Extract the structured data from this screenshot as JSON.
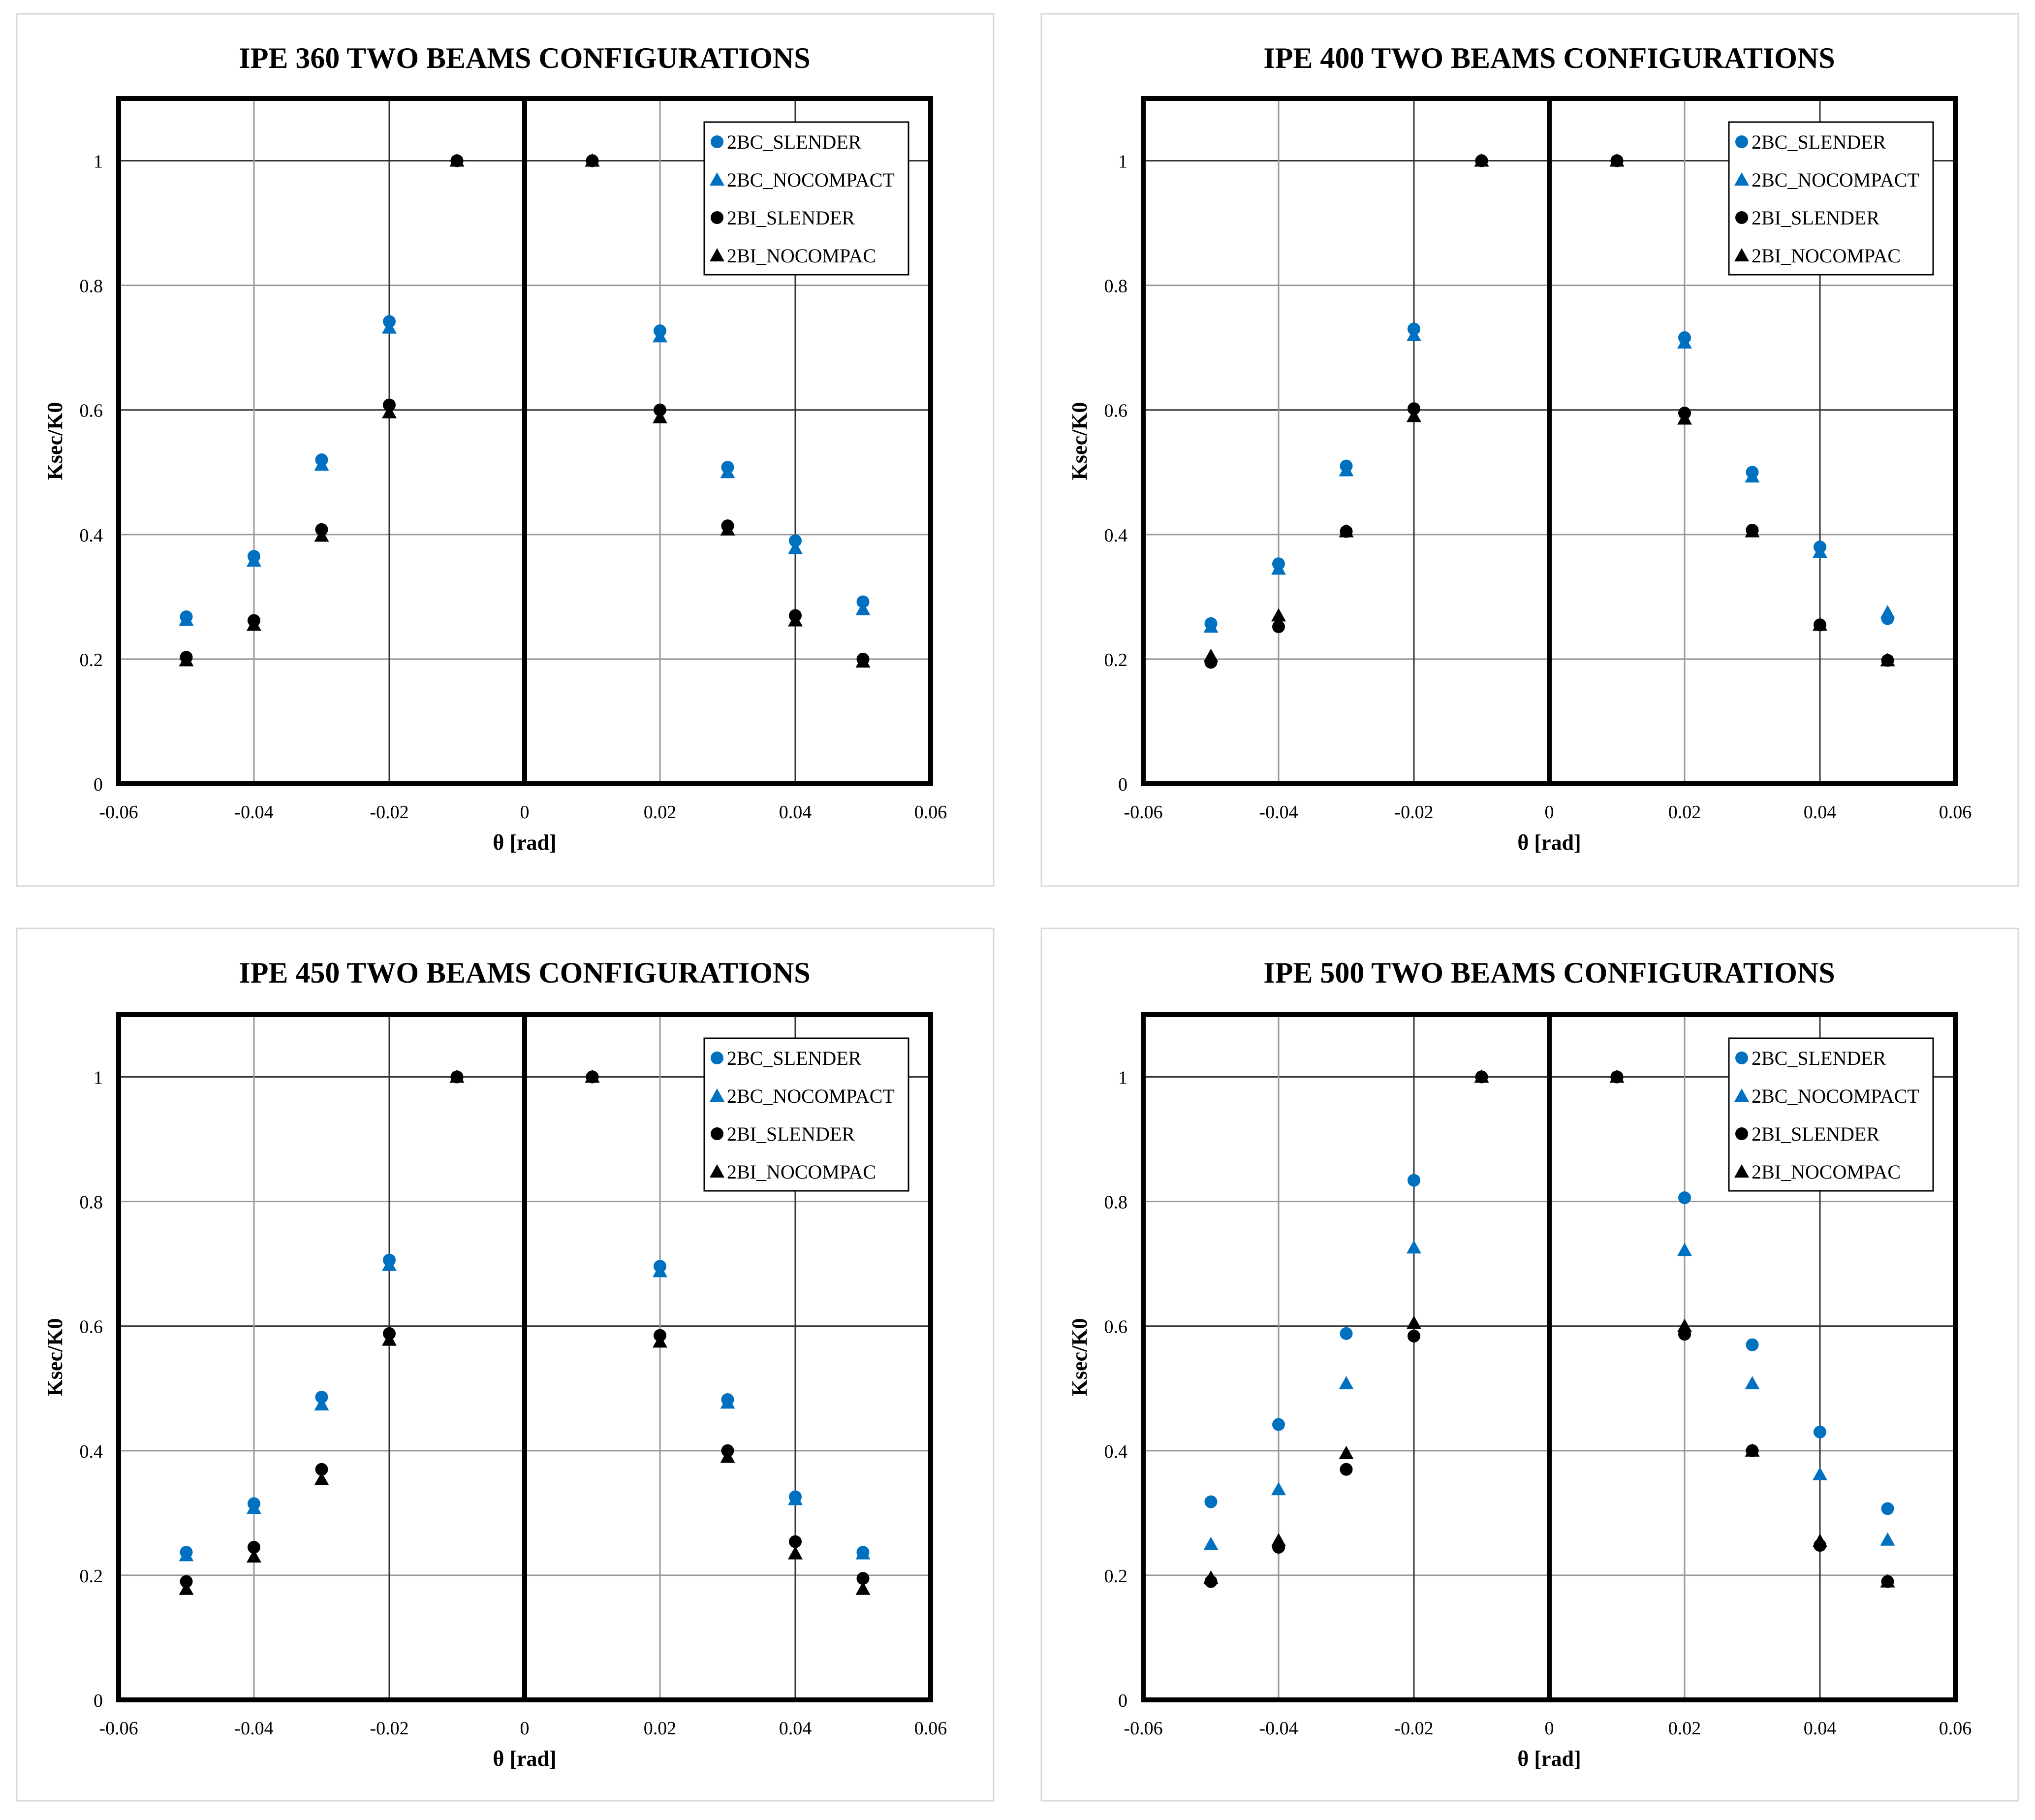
{
  "colors": {
    "blue": "#0070C0",
    "black": "#000000",
    "grid": "#999999",
    "frame": "#000000"
  },
  "chart_data": [
    {
      "type": "scatter",
      "title": "IPE 360 TWO BEAMS CONFIGURATIONS",
      "xlabel": "θ [rad]",
      "ylabel": "Ksec/K0",
      "xlim": [
        -0.06,
        0.06
      ],
      "ylim": [
        0,
        1.1
      ],
      "x_ticks": [
        -0.06,
        -0.04,
        -0.02,
        0,
        0.02,
        0.04,
        0.06
      ],
      "x_tick_labels": [
        "-0.06",
        "-0.04",
        "-0.02",
        "0",
        "0.02",
        "0.04",
        "0.06"
      ],
      "y_ticks": [
        0,
        0.2,
        0.4,
        0.6,
        0.8,
        1
      ],
      "y_tick_labels": [
        "0",
        "0.2",
        "0.4",
        "0.6",
        "0.8",
        "1"
      ],
      "legend_position": "top-right",
      "series": [
        {
          "name": "2BC_SLENDER",
          "marker": "circle",
          "color": "#0070C0",
          "x": [
            -0.05,
            -0.04,
            -0.03,
            -0.02,
            -0.01,
            0.01,
            0.02,
            0.03,
            0.04,
            0.05
          ],
          "y": [
            0.268,
            0.365,
            0.52,
            0.742,
            1.0,
            1.0,
            0.727,
            0.508,
            0.39,
            0.292
          ]
        },
        {
          "name": "2BC_NOCOMPACT",
          "marker": "triangle",
          "color": "#0070C0",
          "x": [
            -0.05,
            -0.04,
            -0.03,
            -0.02,
            -0.01,
            0.01,
            0.02,
            0.03,
            0.04,
            0.05
          ],
          "y": [
            0.263,
            0.358,
            0.512,
            0.732,
            1.0,
            1.0,
            0.718,
            0.5,
            0.378,
            0.28
          ]
        },
        {
          "name": "2BI_SLENDER",
          "marker": "circle",
          "color": "#000000",
          "x": [
            -0.05,
            -0.04,
            -0.03,
            -0.02,
            -0.01,
            0.01,
            0.02,
            0.03,
            0.04,
            0.05
          ],
          "y": [
            0.203,
            0.262,
            0.408,
            0.608,
            1.0,
            1.0,
            0.6,
            0.414,
            0.27,
            0.2
          ]
        },
        {
          "name": "2BI_NOCOMPAC",
          "marker": "triangle",
          "color": "#000000",
          "x": [
            -0.05,
            -0.04,
            -0.03,
            -0.02,
            -0.01,
            0.01,
            0.02,
            0.03,
            0.04,
            0.05
          ],
          "y": [
            0.198,
            0.255,
            0.398,
            0.596,
            1.0,
            1.0,
            0.588,
            0.408,
            0.262,
            0.196
          ]
        }
      ]
    },
    {
      "type": "scatter",
      "title": "IPE 400 TWO BEAMS CONFIGURATIONS",
      "xlabel": "θ [rad]",
      "ylabel": "Ksec/K0",
      "xlim": [
        -0.06,
        0.06
      ],
      "ylim": [
        0,
        1.1
      ],
      "x_ticks": [
        -0.06,
        -0.04,
        -0.02,
        0,
        0.02,
        0.04,
        0.06
      ],
      "x_tick_labels": [
        "-0.06",
        "-0.04",
        "-0.02",
        "0",
        "0.02",
        "0.04",
        "0.06"
      ],
      "y_ticks": [
        0,
        0.2,
        0.4,
        0.6,
        0.8,
        1
      ],
      "y_tick_labels": [
        "0",
        "0.2",
        "0.4",
        "0.6",
        "0.8",
        "1"
      ],
      "legend_position": "top-right",
      "series": [
        {
          "name": "2BC_SLENDER",
          "marker": "circle",
          "color": "#0070C0",
          "x": [
            -0.05,
            -0.04,
            -0.03,
            -0.02,
            -0.01,
            0.01,
            0.02,
            0.03,
            0.04,
            0.05
          ],
          "y": [
            0.257,
            0.353,
            0.51,
            0.73,
            1.0,
            1.0,
            0.716,
            0.5,
            0.38,
            0.265
          ]
        },
        {
          "name": "2BC_NOCOMPACT",
          "marker": "triangle",
          "color": "#0070C0",
          "x": [
            -0.05,
            -0.04,
            -0.03,
            -0.02,
            -0.01,
            0.01,
            0.02,
            0.03,
            0.04,
            0.05
          ],
          "y": [
            0.252,
            0.345,
            0.503,
            0.72,
            1.0,
            1.0,
            0.708,
            0.493,
            0.372,
            0.275
          ]
        },
        {
          "name": "2BI_SLENDER",
          "marker": "circle",
          "color": "#000000",
          "x": [
            -0.05,
            -0.04,
            -0.03,
            -0.02,
            -0.01,
            0.01,
            0.02,
            0.03,
            0.04,
            0.05
          ],
          "y": [
            0.195,
            0.252,
            0.405,
            0.602,
            1.0,
            1.0,
            0.595,
            0.407,
            0.255,
            0.198
          ]
        },
        {
          "name": "2BI_NOCOMPAC",
          "marker": "triangle",
          "color": "#000000",
          "x": [
            -0.05,
            -0.04,
            -0.03,
            -0.02,
            -0.01,
            0.01,
            0.02,
            0.03,
            0.04,
            0.05
          ],
          "y": [
            0.205,
            0.27,
            0.405,
            0.59,
            1.0,
            1.0,
            0.586,
            0.405,
            0.255,
            0.198
          ]
        }
      ]
    },
    {
      "type": "scatter",
      "title": "IPE 450 TWO BEAMS CONFIGURATIONS",
      "xlabel": "θ [rad]",
      "ylabel": "Ksec/K0",
      "xlim": [
        -0.06,
        0.06
      ],
      "ylim": [
        0,
        1.1
      ],
      "x_ticks": [
        -0.06,
        -0.04,
        -0.02,
        0,
        0.02,
        0.04,
        0.06
      ],
      "x_tick_labels": [
        "-0.06",
        "-0.04",
        "-0.02",
        "0",
        "0.02",
        "0.04",
        "0.06"
      ],
      "y_ticks": [
        0,
        0.2,
        0.4,
        0.6,
        0.8,
        1
      ],
      "y_tick_labels": [
        "0",
        "0.2",
        "0.4",
        "0.6",
        "0.8",
        "1"
      ],
      "legend_position": "top-right",
      "series": [
        {
          "name": "2BC_SLENDER",
          "marker": "circle",
          "color": "#0070C0",
          "x": [
            -0.05,
            -0.04,
            -0.03,
            -0.02,
            -0.01,
            0.01,
            0.02,
            0.03,
            0.04,
            0.05
          ],
          "y": [
            0.237,
            0.315,
            0.486,
            0.706,
            1.0,
            1.0,
            0.696,
            0.482,
            0.326,
            0.237
          ]
        },
        {
          "name": "2BC_NOCOMPACT",
          "marker": "triangle",
          "color": "#0070C0",
          "x": [
            -0.05,
            -0.04,
            -0.03,
            -0.02,
            -0.01,
            0.01,
            0.02,
            0.03,
            0.04,
            0.05
          ],
          "y": [
            0.232,
            0.308,
            0.474,
            0.698,
            1.0,
            1.0,
            0.688,
            0.477,
            0.322,
            0.235
          ]
        },
        {
          "name": "2BI_SLENDER",
          "marker": "circle",
          "color": "#000000",
          "x": [
            -0.05,
            -0.04,
            -0.03,
            -0.02,
            -0.01,
            0.01,
            0.02,
            0.03,
            0.04,
            0.05
          ],
          "y": [
            0.19,
            0.245,
            0.37,
            0.588,
            1.0,
            1.0,
            0.585,
            0.4,
            0.254,
            0.195
          ]
        },
        {
          "name": "2BI_NOCOMPAC",
          "marker": "triangle",
          "color": "#000000",
          "x": [
            -0.05,
            -0.04,
            -0.03,
            -0.02,
            -0.01,
            0.01,
            0.02,
            0.03,
            0.04,
            0.05
          ],
          "y": [
            0.178,
            0.23,
            0.354,
            0.578,
            1.0,
            1.0,
            0.575,
            0.39,
            0.235,
            0.178
          ]
        }
      ]
    },
    {
      "type": "scatter",
      "title": "IPE 500 TWO BEAMS CONFIGURATIONS",
      "xlabel": "θ [rad]",
      "ylabel": "Ksec/K0",
      "xlim": [
        -0.06,
        0.06
      ],
      "ylim": [
        0,
        1.1
      ],
      "x_ticks": [
        -0.06,
        -0.04,
        -0.02,
        0,
        0.02,
        0.04,
        0.06
      ],
      "x_tick_labels": [
        "-0.06",
        "-0.04",
        "-0.02",
        "0",
        "0.02",
        "0.04",
        "0.06"
      ],
      "y_ticks": [
        0,
        0.2,
        0.4,
        0.6,
        0.8,
        1
      ],
      "y_tick_labels": [
        "0",
        "0.2",
        "0.4",
        "0.6",
        "0.8",
        "1"
      ],
      "legend_position": "top-right",
      "series": [
        {
          "name": "2BC_SLENDER",
          "marker": "circle",
          "color": "#0070C0",
          "x": [
            -0.05,
            -0.04,
            -0.03,
            -0.02,
            -0.01,
            0.01,
            0.02,
            0.03,
            0.04,
            0.05
          ],
          "y": [
            0.318,
            0.442,
            0.588,
            0.834,
            1.0,
            1.0,
            0.806,
            0.57,
            0.43,
            0.307
          ]
        },
        {
          "name": "2BC_NOCOMPACT",
          "marker": "triangle",
          "color": "#0070C0",
          "x": [
            -0.05,
            -0.04,
            -0.03,
            -0.02,
            -0.01,
            0.01,
            0.02,
            0.03,
            0.04,
            0.05
          ],
          "y": [
            0.25,
            0.338,
            0.508,
            0.726,
            1.0,
            1.0,
            0.722,
            0.508,
            0.362,
            0.257
          ]
        },
        {
          "name": "2BI_SLENDER",
          "marker": "circle",
          "color": "#000000",
          "x": [
            -0.05,
            -0.04,
            -0.03,
            -0.02,
            -0.01,
            0.01,
            0.02,
            0.03,
            0.04,
            0.05
          ],
          "y": [
            0.19,
            0.245,
            0.37,
            0.584,
            1.0,
            1.0,
            0.587,
            0.4,
            0.248,
            0.19
          ]
        },
        {
          "name": "2BI_NOCOMPAC",
          "marker": "triangle",
          "color": "#000000",
          "x": [
            -0.05,
            -0.04,
            -0.03,
            -0.02,
            -0.01,
            0.01,
            0.02,
            0.03,
            0.04,
            0.05
          ],
          "y": [
            0.196,
            0.256,
            0.396,
            0.605,
            1.0,
            1.0,
            0.6,
            0.4,
            0.255,
            0.19
          ]
        }
      ]
    }
  ]
}
